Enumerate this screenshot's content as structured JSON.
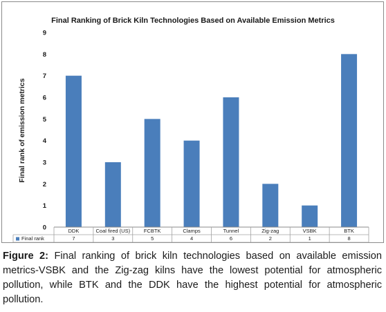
{
  "chart_data": {
    "type": "bar",
    "title": "Final Ranking of Brick Kiln Technologies Based on Available Emission Metrics",
    "ylabel": "Final rank of emission metrics",
    "xlabel": "",
    "ylim": [
      0,
      9
    ],
    "yticks": [
      "0",
      "1",
      "2",
      "3",
      "4",
      "5",
      "6",
      "7",
      "8",
      "9"
    ],
    "categories": [
      "DDK",
      "Coal fired (US)",
      "FCBTK",
      "Clamps",
      "Tunnel",
      "Zig-zag",
      "VSBK",
      "BTK"
    ],
    "series": [
      {
        "name": "Final rank",
        "values": [
          7,
          3,
          5,
          4,
          6,
          2,
          1,
          8
        ],
        "color": "#4a7ebb"
      }
    ],
    "value_labels": [
      "7",
      "3",
      "5",
      "4",
      "6",
      "2",
      "1",
      "8"
    ],
    "grid": false,
    "legend": "data-table"
  },
  "caption": {
    "label": "Figure 2:",
    "text": " Final ranking of brick kiln technologies based on available emission metrics-VSBK and the Zig-zag kilns have the lowest potential for atmospheric pollution, while BTK and the DDK have the highest potential for atmospheric pollution."
  }
}
